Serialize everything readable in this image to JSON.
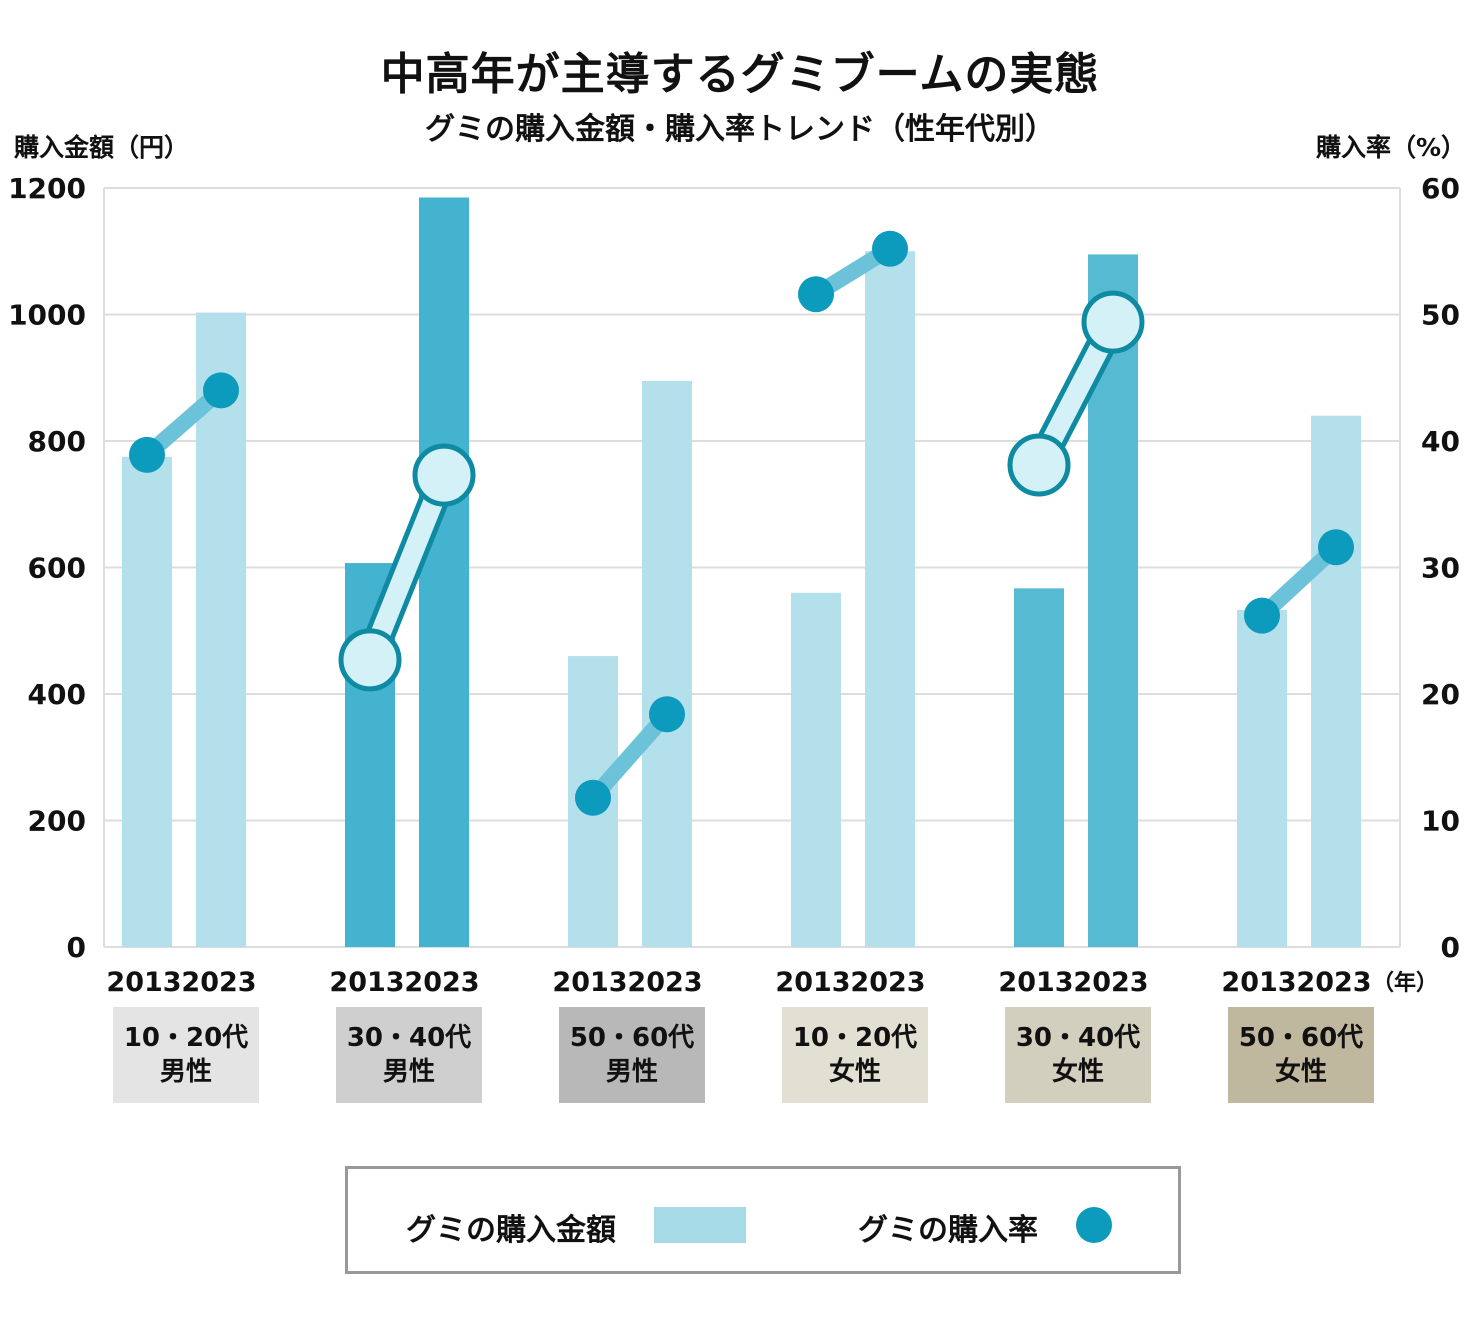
{
  "title": "中高年が主導するグミブームの実態",
  "subtitle": "グミの購入金額・購入率トレンド（性年代別）",
  "left_axis_title": "購入金額（円）",
  "right_axis_title": "購入率（%）",
  "year_unit": "（年）",
  "colors": {
    "bar_light": "#b3e0eb",
    "bar_mid": "#56bbd2",
    "bar_dark": "#44b3cf",
    "line_light": "#6cc3d9",
    "dot_fill": "#0c9abd",
    "ring_fill": "#d3f1f6",
    "ring_stroke": "#0e8aa3",
    "grid": "#dddddd"
  },
  "groups": [
    {
      "line1": "10・20代",
      "line2": "男性",
      "bg": "#e4e4e4"
    },
    {
      "line1": "30・40代",
      "line2": "男性",
      "bg": "#cfcfcf"
    },
    {
      "line1": "50・60代",
      "line2": "男性",
      "bg": "#b8b8b8"
    },
    {
      "line1": "10・20代",
      "line2": "女性",
      "bg": "#e2dfd3"
    },
    {
      "line1": "30・40代",
      "line2": "女性",
      "bg": "#d3cfbe"
    },
    {
      "line1": "50・60代",
      "line2": "女性",
      "bg": "#bfb79e"
    }
  ],
  "legend": {
    "amount_label": "グミの購入金額",
    "rate_label": "グミの購入率"
  },
  "chart_data": {
    "type": "bar",
    "years": [
      "2013",
      "2023"
    ],
    "categories": [
      "10・20代 男性",
      "30・40代 男性",
      "50・60代 男性",
      "10・20代 女性",
      "30・40代 女性",
      "50・60代 女性"
    ],
    "series": [
      {
        "name": "グミの購入金額",
        "type": "bar",
        "axis": "left",
        "values_2013": [
          775,
          607,
          460,
          560,
          567,
          533
        ],
        "values_2023": [
          1003,
          1185,
          895,
          1100,
          1095,
          840
        ]
      },
      {
        "name": "グミの購入率",
        "type": "line",
        "axis": "right",
        "values_2013": [
          38.9,
          22.7,
          11.8,
          51.6,
          38.1,
          26.2
        ],
        "values_2023": [
          44.0,
          37.3,
          18.4,
          55.2,
          49.4,
          31.6
        ]
      }
    ],
    "highlighted": [
      1,
      4
    ],
    "y_left": {
      "min": 0,
      "max": 1200,
      "ticks": [
        0,
        200,
        400,
        600,
        800,
        1000,
        1200
      ]
    },
    "y_right": {
      "min": 0,
      "max": 60,
      "ticks": [
        0,
        10,
        20,
        30,
        40,
        50,
        60
      ]
    },
    "grid": true
  }
}
